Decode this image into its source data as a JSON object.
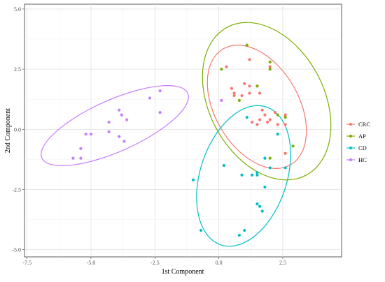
{
  "chart_data": {
    "type": "scatter",
    "xlabel": "1st Component",
    "ylabel": "2nd Component",
    "xlim": [
      -7.6,
      4.8
    ],
    "ylim": [
      -5.3,
      5.2
    ],
    "xticks": [
      -7.5,
      -5.0,
      -2.5,
      0.0,
      2.5
    ],
    "xtick_labels": [
      "-7.5",
      "-5.0",
      "-2.5",
      "0.0",
      "2.5"
    ],
    "yticks": [
      -5.0,
      -2.5,
      0.0,
      2.5,
      5.0
    ],
    "ytick_labels": [
      "-5.0",
      "-2.5",
      "0.0",
      "2.5",
      "5.0"
    ],
    "grid": true,
    "legend_position": "right",
    "series": [
      {
        "name": "CRC",
        "color": "#F8766D",
        "points": [
          [
            0.3,
            2.6
          ],
          [
            0.5,
            1.7
          ],
          [
            0.6,
            1.4
          ],
          [
            0.6,
            1.5
          ],
          [
            1.0,
            1.9
          ],
          [
            1.2,
            2.9
          ],
          [
            1.2,
            1.5
          ],
          [
            1.2,
            1.8
          ],
          [
            1.5,
            1.8
          ],
          [
            1.6,
            1.5
          ],
          [
            1.7,
            0.8
          ],
          [
            1.8,
            0.6
          ],
          [
            1.6,
            0.4
          ],
          [
            1.5,
            0.2
          ],
          [
            1.9,
            0.3
          ],
          [
            2.0,
            2.6
          ],
          [
            2.0,
            0.4
          ],
          [
            2.2,
            0.7
          ],
          [
            2.3,
            0.2
          ],
          [
            2.6,
            0.2
          ],
          [
            2.6,
            0.6
          ],
          [
            2.6,
            -1.0
          ],
          [
            0.9,
            1.4
          ],
          [
            1.3,
            0.3
          ]
        ]
      },
      {
        "name": "AP",
        "color": "#7CAE00",
        "points": [
          [
            1.1,
            3.5
          ],
          [
            2.0,
            2.8
          ],
          [
            2.0,
            2.5
          ],
          [
            1.5,
            1.8
          ],
          [
            0.8,
            1.2
          ],
          [
            2.3,
            0.6
          ],
          [
            2.6,
            0.5
          ],
          [
            2.9,
            -0.7
          ],
          [
            2.0,
            -1.2
          ],
          [
            0.1,
            2.5
          ]
        ]
      },
      {
        "name": "CD",
        "color": "#00BFC4",
        "points": [
          [
            1.1,
            0.5
          ],
          [
            2.3,
            -0.2
          ],
          [
            1.8,
            -1.2
          ],
          [
            2.0,
            -1.6
          ],
          [
            1.5,
            -1.8
          ],
          [
            1.5,
            -1.9
          ],
          [
            1.3,
            -1.9
          ],
          [
            0.9,
            -1.9
          ],
          [
            1.8,
            -2.4
          ],
          [
            1.5,
            -3.1
          ],
          [
            1.6,
            -3.2
          ],
          [
            1.7,
            -3.4
          ],
          [
            1.0,
            -4.2
          ],
          [
            0.8,
            -4.4
          ],
          [
            0.2,
            -1.5
          ],
          [
            -1.0,
            -2.1
          ],
          [
            -0.7,
            -4.2
          ],
          [
            2.6,
            -1.6
          ]
        ]
      },
      {
        "name": "HC",
        "color": "#C77CFF",
        "points": [
          [
            -5.7,
            -1.2
          ],
          [
            -5.4,
            -1.2
          ],
          [
            -5.4,
            -0.8
          ],
          [
            -5.2,
            -0.2
          ],
          [
            -5.0,
            -0.2
          ],
          [
            -4.3,
            0.3
          ],
          [
            -4.3,
            -0.1
          ],
          [
            -3.9,
            0.8
          ],
          [
            -3.8,
            0.6
          ],
          [
            -3.7,
            -0.5
          ],
          [
            -3.6,
            0.4
          ],
          [
            -3.9,
            -0.3
          ],
          [
            -2.7,
            1.3
          ],
          [
            -2.3,
            1.6
          ],
          [
            -2.3,
            0.7
          ],
          [
            0.1,
            1.2
          ]
        ]
      }
    ]
  }
}
